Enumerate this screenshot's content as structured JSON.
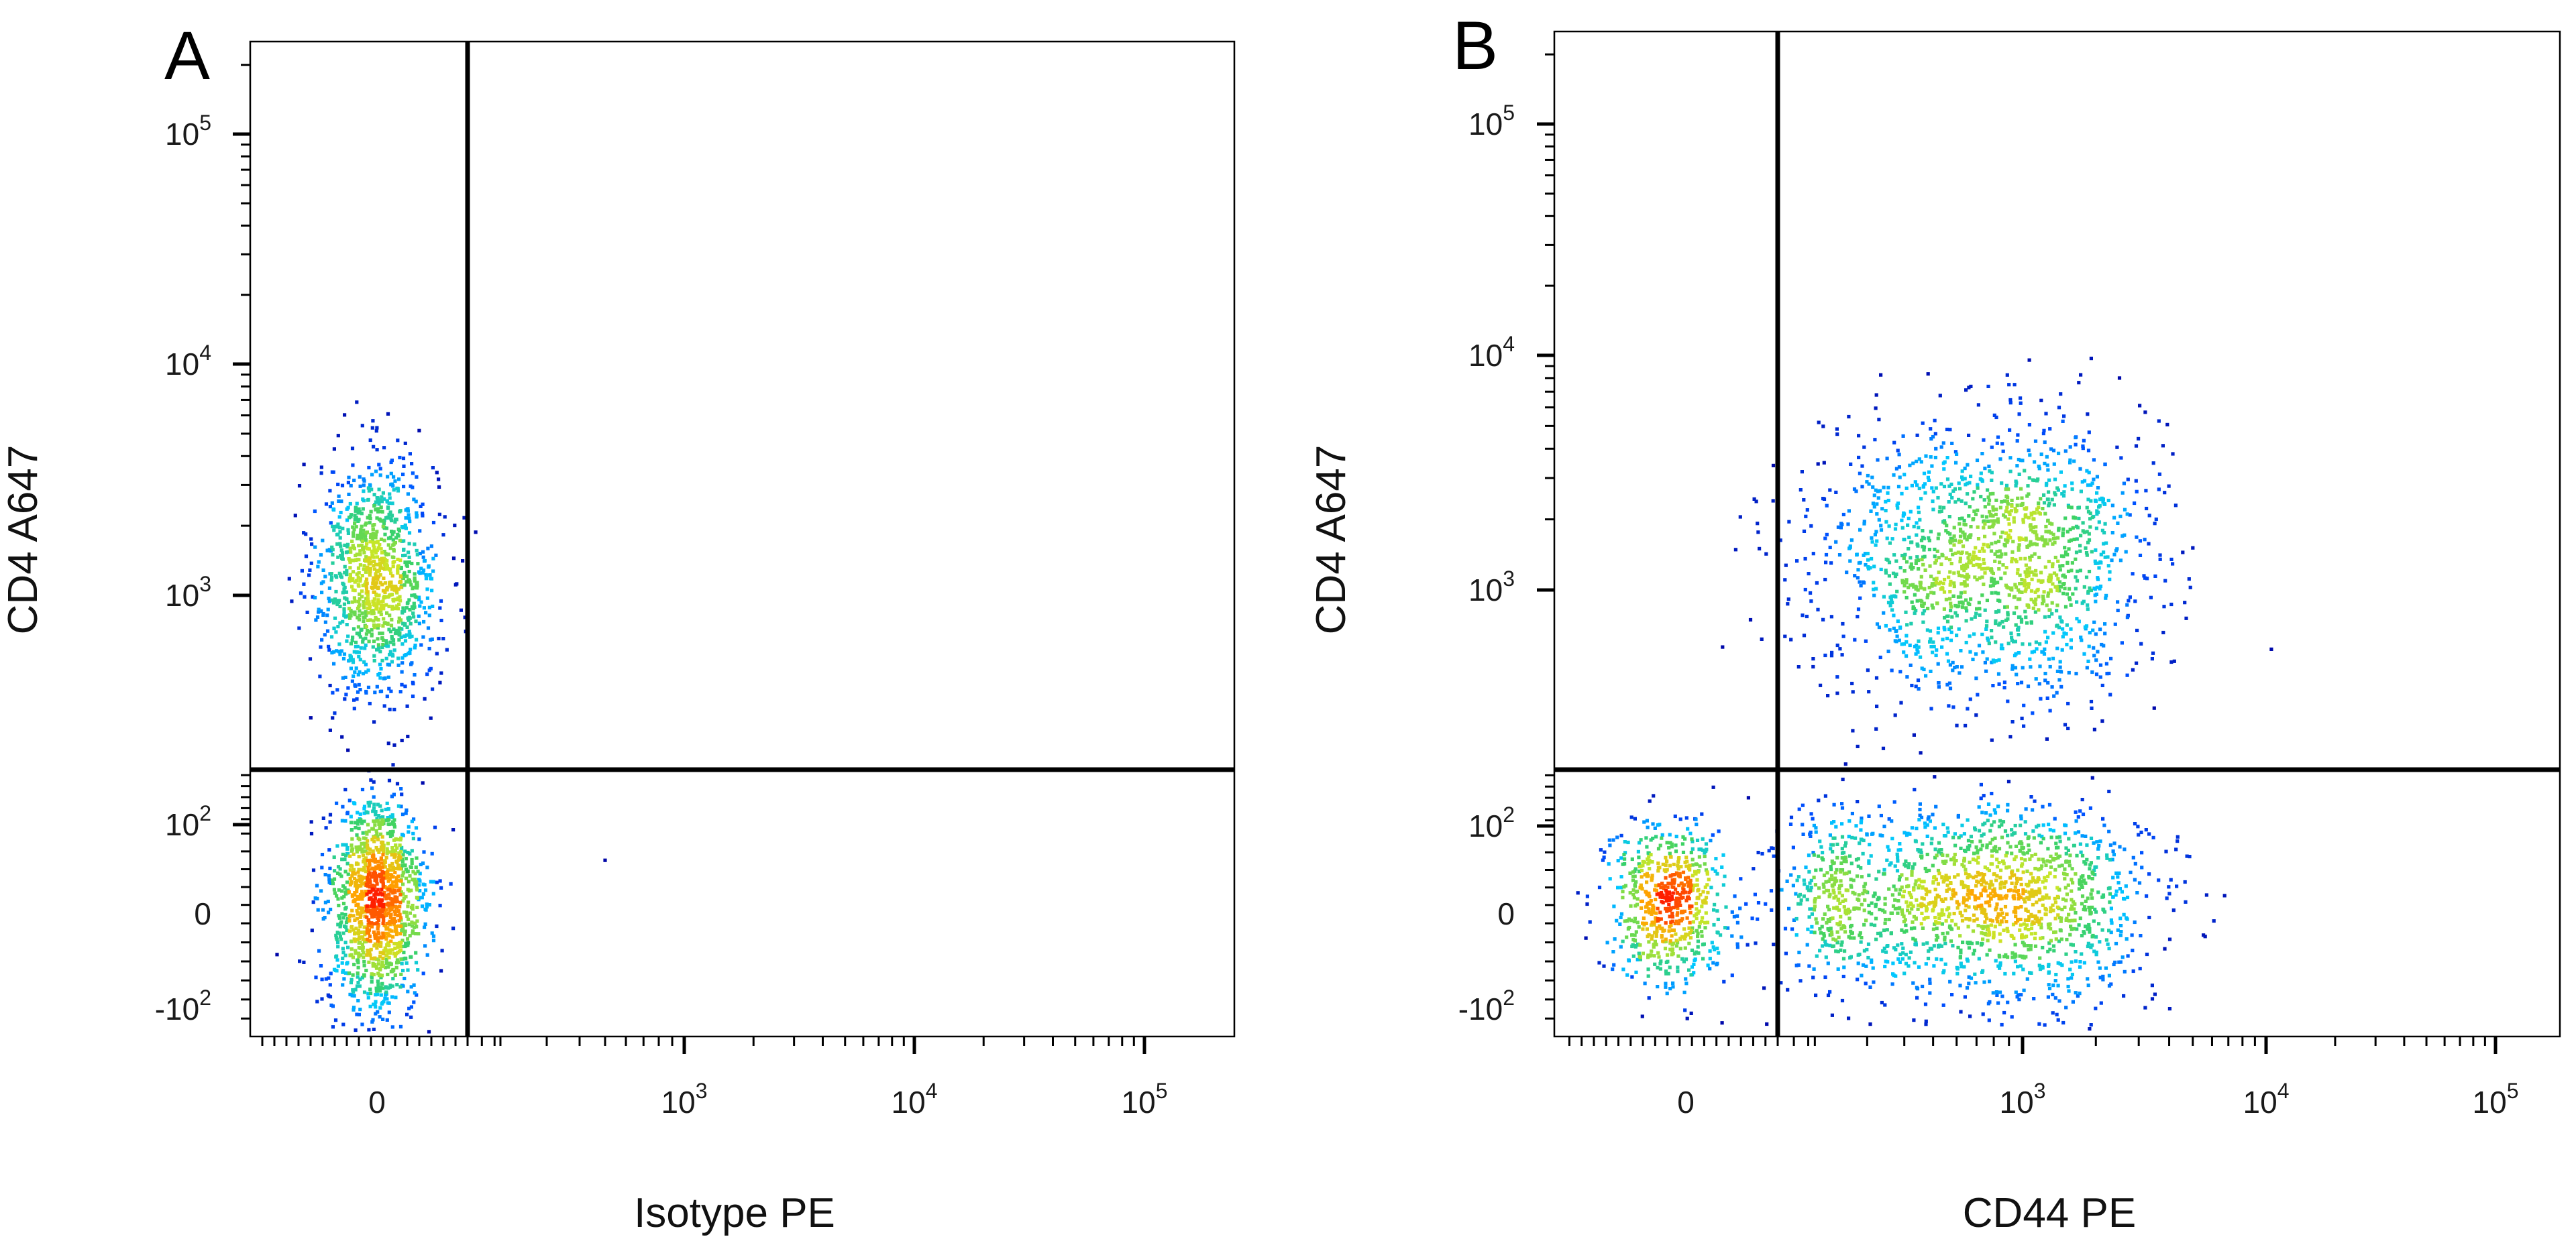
{
  "figure": {
    "panels": [
      {
        "letter": "A",
        "xlabel": "Isotype PE",
        "ylabel": "CD4 A647",
        "x_tick_labels": [
          {
            "base": "0",
            "exp": ""
          },
          {
            "base": "10",
            "exp": "3"
          },
          {
            "base": "10",
            "exp": "4"
          },
          {
            "base": "10",
            "exp": "5"
          }
        ],
        "y_tick_labels": [
          {
            "base": "10",
            "exp": "5"
          },
          {
            "base": "10",
            "exp": "4"
          },
          {
            "base": "10",
            "exp": "3"
          },
          {
            "base": "10",
            "exp": "2"
          },
          {
            "base": "0",
            "exp": ""
          },
          {
            "base": "-10",
            "exp": "2"
          }
        ]
      },
      {
        "letter": "B",
        "xlabel": "CD44 PE",
        "ylabel": "CD4 A647",
        "x_tick_labels": [
          {
            "base": "0",
            "exp": ""
          },
          {
            "base": "10",
            "exp": "3"
          },
          {
            "base": "10",
            "exp": "4"
          },
          {
            "base": "10",
            "exp": "5"
          }
        ],
        "y_tick_labels": [
          {
            "base": "10",
            "exp": "5"
          },
          {
            "base": "10",
            "exp": "4"
          },
          {
            "base": "10",
            "exp": "3"
          },
          {
            "base": "10",
            "exp": "2"
          },
          {
            "base": "0",
            "exp": ""
          },
          {
            "base": "-10",
            "exp": "2"
          }
        ]
      }
    ]
  },
  "chart_data": [
    {
      "type": "scatter",
      "panel": "A",
      "title": "",
      "xlabel": "Isotype PE",
      "ylabel": "CD4 A647",
      "x_scale": "biexponential",
      "y_scale": "biexponential",
      "xlim": [
        -200,
        200000
      ],
      "ylim": [
        -200,
        300000
      ],
      "density_colormap": [
        "#0000a0",
        "#0050ff",
        "#00c8ff",
        "#3cd264",
        "#c8e628",
        "#ffa500",
        "#ff1e00"
      ],
      "quadrant_gate": {
        "x": 150,
        "y": 200
      },
      "populations": [
        {
          "name": "",
          "x_center": 0,
          "y_center": 1200,
          "x_spread": 50,
          "y_spread": 0.25,
          "events": 1100
        },
        {
          "name": "",
          "x_center": 0,
          "y_center": 10,
          "x_spread": 40,
          "y_spread": 60,
          "events": 1300
        }
      ],
      "outliers": [
        {
          "x": 500,
          "y": 60
        },
        {
          "x": 80,
          "y": 5
        }
      ]
    },
    {
      "type": "scatter",
      "panel": "B",
      "title": "",
      "xlabel": "CD44 PE",
      "ylabel": "CD4 A647",
      "x_scale": "biexponential",
      "y_scale": "biexponential",
      "xlim": [
        -200,
        200000
      ],
      "ylim": [
        -200,
        300000
      ],
      "density_colormap": [
        "#0000a0",
        "#0050ff",
        "#00c8ff",
        "#3cd264",
        "#c8e628",
        "#ffa500",
        "#ff1e00"
      ],
      "quadrant_gate": {
        "x": 150,
        "y": 200
      },
      "populations": [
        {
          "name": "",
          "x_center": 800,
          "y_center": 1400,
          "x_spread": 0.3,
          "y_spread": 0.28,
          "events": 1600
        },
        {
          "name": "",
          "x_center": 800,
          "y_center": 15,
          "x_spread": 0.3,
          "y_spread": 55,
          "events": 1500
        },
        {
          "name": "",
          "x_center": -30,
          "y_center": 10,
          "x_spread": 50,
          "y_spread": 45,
          "events": 650
        },
        {
          "name": "",
          "x_center": 220,
          "y_center": 20,
          "x_spread": 40,
          "y_spread": 50,
          "events": 220
        }
      ],
      "outliers": [
        {
          "x": 150,
          "y": 2500
        },
        {
          "x": 120,
          "y": 1500
        },
        {
          "x": 900,
          "y": 7500
        },
        {
          "x": 2500,
          "y": 8000
        },
        {
          "x": 60,
          "y": 600
        }
      ]
    }
  ]
}
